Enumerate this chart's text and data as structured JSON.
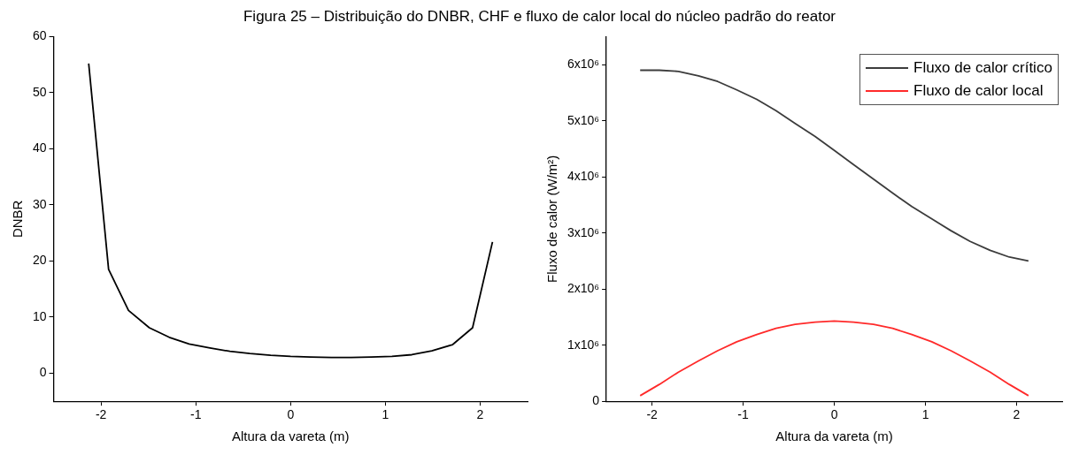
{
  "chart_data": [
    {
      "type": "line",
      "title": "Figura 25 – Distribuição do DNBR, CHF e fluxo de calor local do núcleo padrão do reator",
      "xlabel": "Altura da vareta (m)",
      "ylabel": "DNBR",
      "x": [
        -2.13,
        -1.92,
        -1.71,
        -1.49,
        -1.28,
        -1.07,
        -0.85,
        -0.64,
        -0.43,
        -0.21,
        0,
        0.21,
        0.43,
        0.64,
        0.85,
        1.07,
        1.28,
        1.49,
        1.71,
        1.92,
        2.13
      ],
      "series": [
        {
          "color": "#000000",
          "values": [
            55.2,
            18.5,
            11.2,
            8.1,
            6.4,
            5.2,
            4.5,
            3.9,
            3.5,
            3.2,
            3.0,
            2.9,
            2.8,
            2.8,
            2.9,
            3.0,
            3.3,
            4.0,
            5.1,
            8.1,
            23.4
          ]
        }
      ],
      "xlim": [
        -2.5,
        2.5
      ],
      "xticks": [
        -2,
        -1,
        0,
        1,
        2
      ],
      "ylim": [
        -5,
        60
      ],
      "yticks": [
        0,
        10,
        20,
        30,
        40,
        50,
        60
      ],
      "grid": false,
      "legend": false,
      "marker": "none",
      "line_style": "solid"
    },
    {
      "type": "line",
      "xlabel": "Altura da vareta (m)",
      "ylabel": "Fluxo de calor (W/m²)",
      "x": [
        -2.13,
        -1.92,
        -1.71,
        -1.49,
        -1.28,
        -1.07,
        -0.85,
        -0.64,
        -0.43,
        -0.21,
        0,
        0.21,
        0.43,
        0.64,
        0.85,
        1.07,
        1.28,
        1.49,
        1.71,
        1.92,
        2.13
      ],
      "series": [
        {
          "name": "Fluxo de calor crítico",
          "color": "#3c3c3c",
          "values": [
            5900000,
            5900000,
            5880000,
            5800000,
            5700000,
            5550000,
            5380000,
            5180000,
            4950000,
            4720000,
            4470000,
            4220000,
            3960000,
            3710000,
            3470000,
            3250000,
            3040000,
            2850000,
            2690000,
            2570000,
            2500000
          ]
        },
        {
          "name": "Fluxo de calor local",
          "color": "#ff2a2a",
          "values": [
            100000,
            300000,
            520000,
            720000,
            900000,
            1060000,
            1190000,
            1300000,
            1370000,
            1410000,
            1430000,
            1410000,
            1370000,
            1300000,
            1190000,
            1060000,
            900000,
            720000,
            520000,
            300000,
            100000
          ]
        }
      ],
      "xlim": [
        -2.5,
        2.5
      ],
      "xticks": [
        -2,
        -1,
        0,
        1,
        2
      ],
      "ylim": [
        0,
        6500000
      ],
      "yticks": [
        0,
        {
          "value": 1000000,
          "label": "1x10⁶"
        },
        {
          "value": 2000000,
          "label": "2x10⁶"
        },
        {
          "value": 3000000,
          "label": "3x10⁶"
        },
        {
          "value": 4000000,
          "label": "4x10⁶"
        },
        {
          "value": 5000000,
          "label": "5x10⁶"
        },
        {
          "value": 6000000,
          "label": "6x10⁶"
        }
      ],
      "grid": false,
      "legend": "top right",
      "marker": "none",
      "line_style": "solid"
    }
  ]
}
